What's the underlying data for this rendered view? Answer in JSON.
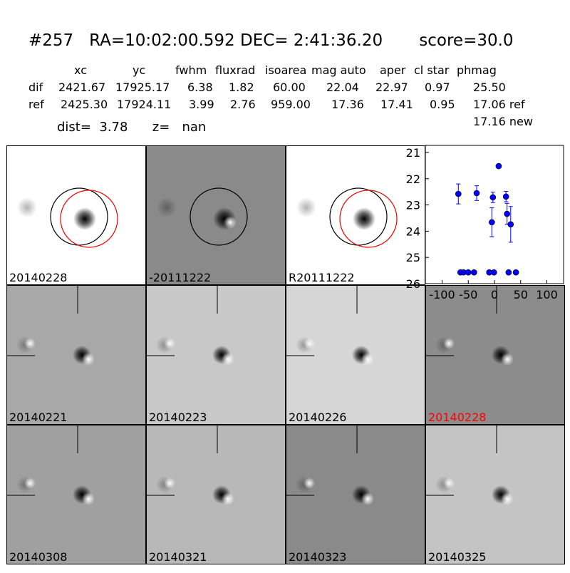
{
  "header": {
    "title": "#257   RA=10:02:00.592 DEC= 2:41:36.20       score=30.0",
    "columns": [
      "xc",
      "yc",
      "fwhm",
      "fluxrad",
      "isoarea",
      "mag auto",
      "aper",
      "cl star",
      "phmag"
    ],
    "rows": [
      {
        "label": "dif",
        "values": [
          "2421.67",
          "17925.17",
          "6.38",
          "1.82",
          "60.00",
          "22.04",
          "22.97",
          "0.97",
          "25.50"
        ]
      },
      {
        "label": "ref",
        "values": [
          "2425.30",
          "17924.11",
          "3.99",
          "2.76",
          "959.00",
          "17.36",
          "17.41",
          "0.95",
          "17.06 ref"
        ]
      }
    ],
    "extra": "17.16 new",
    "dist": "dist=  3.78      z=   nan"
  },
  "panels": [
    {
      "label": "20140228"
    },
    {
      "label": "-20111222"
    },
    {
      "label": "R20111222"
    },
    {
      "label": "20140221"
    },
    {
      "label": "20140223"
    },
    {
      "label": "20140226"
    },
    {
      "label": "20140228",
      "label_color": "#ff0000"
    },
    {
      "label": "20140308"
    },
    {
      "label": "20140321"
    },
    {
      "label": "20140323"
    },
    {
      "label": "20140325"
    }
  ],
  "chart_data": {
    "type": "scatter",
    "color": "#0000ff",
    "x": [
      -69,
      -34,
      -3,
      8,
      22,
      24,
      -5,
      31,
      -65,
      -59,
      -50,
      -39,
      -10,
      -1,
      27,
      41
    ],
    "values": [
      22.58,
      22.55,
      22.71,
      21.52,
      22.68,
      23.34,
      23.66,
      23.74,
      25.57,
      25.57,
      25.57,
      25.57,
      25.57,
      25.57,
      25.57,
      25.57
    ],
    "errors": [
      0.38,
      0.28,
      0.2,
      0,
      0.2,
      0.4,
      0.55,
      0.68,
      0,
      0,
      0,
      0,
      0,
      0,
      0,
      0
    ],
    "xlim": [
      -132,
      132
    ],
    "ylim": [
      20.73,
      26
    ],
    "y_inverted": true,
    "xticks": [
      -100,
      -50,
      0,
      50,
      100
    ],
    "yticks": [
      21,
      22,
      23,
      24,
      25,
      26
    ]
  }
}
